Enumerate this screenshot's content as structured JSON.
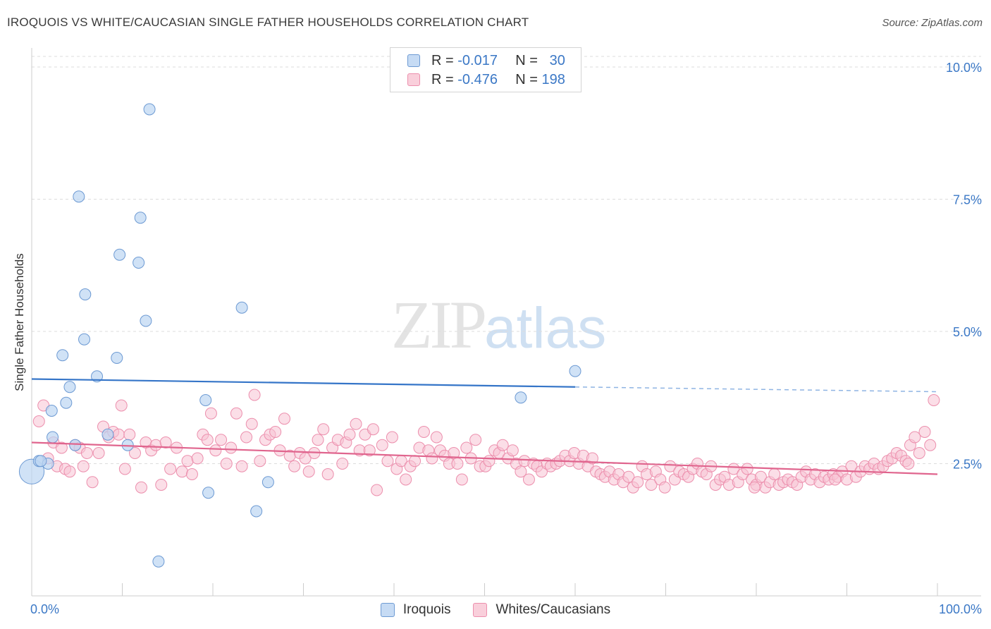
{
  "title": "IROQUOIS VS WHITE/CAUCASIAN SINGLE FATHER HOUSEHOLDS CORRELATION CHART",
  "source": "Source: ZipAtlas.com",
  "watermark": {
    "zip": "ZIP",
    "atlas": "atlas"
  },
  "legend_top": [
    {
      "r_label": "R =",
      "r_value": "-0.017",
      "n_label": "N =",
      "n_value": "30",
      "color": "#a8c8ee"
    },
    {
      "r_label": "R =",
      "r_value": "-0.476",
      "n_label": "N =",
      "n_value": "198",
      "color": "#f5b8cb"
    }
  ],
  "legend_bottom": [
    {
      "label": "Iroquois",
      "color": "#a8c8ee"
    },
    {
      "label": "Whites/Caucasians",
      "color": "#f5b8cb"
    }
  ],
  "chart_data": {
    "type": "scatter",
    "title": "IROQUOIS VS WHITE/CAUCASIAN SINGLE FATHER HOUSEHOLDS CORRELATION CHART",
    "xlabel": "",
    "ylabel": "Single Father Households",
    "xlim": [
      0,
      100
    ],
    "ylim": [
      0,
      10.2
    ],
    "x_tick_labels": [
      "0.0%",
      "100.0%"
    ],
    "y_ticks": [
      2.5,
      5.0,
      7.5,
      10.0
    ],
    "y_tick_labels": [
      "2.5%",
      "5.0%",
      "7.5%",
      "10.0%"
    ],
    "grid": "horizontal dashed",
    "colors": {
      "iroquois": "#3575c8",
      "iroquois_fill": "#bcd5f2",
      "whites": "#e0658e",
      "whites_fill": "#f7c3d3",
      "tick_label": "#3b78c6"
    },
    "series": [
      {
        "name": "Iroquois",
        "trend": {
          "x0": 0,
          "y0": 4.1,
          "x1": 60,
          "y1": 3.95,
          "dashed_to_x": 100,
          "dashed_to_y": 3.86
        },
        "points": [
          [
            0.0,
            2.35,
            2.2
          ],
          [
            0.8,
            2.55,
            1
          ],
          [
            1.8,
            2.5,
            1
          ],
          [
            2.3,
            3.0,
            1
          ],
          [
            2.2,
            3.5,
            1
          ],
          [
            3.4,
            4.55,
            1
          ],
          [
            3.8,
            3.65,
            1
          ],
          [
            4.2,
            3.95,
            1
          ],
          [
            4.8,
            2.85,
            1
          ],
          [
            5.2,
            7.55,
            1
          ],
          [
            5.9,
            5.7,
            1
          ],
          [
            5.8,
            4.85,
            1
          ],
          [
            7.2,
            4.15,
            1
          ],
          [
            8.4,
            3.05,
            1
          ],
          [
            9.4,
            4.5,
            1
          ],
          [
            9.7,
            6.45,
            1
          ],
          [
            10.6,
            2.85,
            1
          ],
          [
            11.8,
            6.3,
            1
          ],
          [
            12.0,
            7.15,
            1
          ],
          [
            12.6,
            5.2,
            1
          ],
          [
            13.0,
            9.2,
            1
          ],
          [
            14.0,
            0.65,
            1
          ],
          [
            19.2,
            3.7,
            1
          ],
          [
            19.5,
            1.95,
            1
          ],
          [
            23.2,
            5.45,
            1
          ],
          [
            24.8,
            1.6,
            1
          ],
          [
            26.1,
            2.15,
            1
          ],
          [
            60.0,
            4.25,
            1
          ],
          [
            54.0,
            3.75,
            1
          ],
          [
            1.0,
            2.55,
            1
          ]
        ]
      },
      {
        "name": "Whites/Caucasians",
        "trend": {
          "x0": 0,
          "y0": 2.9,
          "x1": 100,
          "y1": 2.3
        },
        "points": [
          [
            0.8,
            3.3
          ],
          [
            1.3,
            3.6
          ],
          [
            1.8,
            2.6
          ],
          [
            2.4,
            2.9
          ],
          [
            2.8,
            2.45
          ],
          [
            3.3,
            2.8
          ],
          [
            3.7,
            2.4
          ],
          [
            4.2,
            2.35
          ],
          [
            4.8,
            2.85
          ],
          [
            5.3,
            2.8
          ],
          [
            5.7,
            2.45
          ],
          [
            6.1,
            2.7
          ],
          [
            6.7,
            2.15
          ],
          [
            7.4,
            2.7
          ],
          [
            7.9,
            3.2
          ],
          [
            8.5,
            3.0
          ],
          [
            9.0,
            3.1
          ],
          [
            9.6,
            3.05
          ],
          [
            9.9,
            3.6
          ],
          [
            10.3,
            2.4
          ],
          [
            10.8,
            3.05
          ],
          [
            11.4,
            2.7
          ],
          [
            12.1,
            2.05
          ],
          [
            12.6,
            2.9
          ],
          [
            13.2,
            2.75
          ],
          [
            13.7,
            2.85
          ],
          [
            14.3,
            2.1
          ],
          [
            14.8,
            2.9
          ],
          [
            15.3,
            2.4
          ],
          [
            16.0,
            2.8
          ],
          [
            16.6,
            2.35
          ],
          [
            17.2,
            2.55
          ],
          [
            17.7,
            2.3
          ],
          [
            18.3,
            2.6
          ],
          [
            18.9,
            3.05
          ],
          [
            19.4,
            2.95
          ],
          [
            19.8,
            3.45
          ],
          [
            20.3,
            2.75
          ],
          [
            20.9,
            2.95
          ],
          [
            21.5,
            2.5
          ],
          [
            22.0,
            2.8
          ],
          [
            22.6,
            3.45
          ],
          [
            23.2,
            2.45
          ],
          [
            23.7,
            3.0
          ],
          [
            24.3,
            3.25
          ],
          [
            24.6,
            3.8
          ],
          [
            25.2,
            2.55
          ],
          [
            25.8,
            2.95
          ],
          [
            26.3,
            3.05
          ],
          [
            26.9,
            3.1
          ],
          [
            27.4,
            2.75
          ],
          [
            27.9,
            3.35
          ],
          [
            28.5,
            2.65
          ],
          [
            29.0,
            2.45
          ],
          [
            29.6,
            2.7
          ],
          [
            30.2,
            2.6
          ],
          [
            30.6,
            2.35
          ],
          [
            31.2,
            2.7
          ],
          [
            31.6,
            2.95
          ],
          [
            32.2,
            3.15
          ],
          [
            32.7,
            2.3
          ],
          [
            33.2,
            2.8
          ],
          [
            33.8,
            2.95
          ],
          [
            34.3,
            2.5
          ],
          [
            34.7,
            2.9
          ],
          [
            35.1,
            3.05
          ],
          [
            35.8,
            3.25
          ],
          [
            36.2,
            2.75
          ],
          [
            36.8,
            3.05
          ],
          [
            37.3,
            2.75
          ],
          [
            37.7,
            3.15
          ],
          [
            38.1,
            2.0
          ],
          [
            38.7,
            2.85
          ],
          [
            39.3,
            2.55
          ],
          [
            39.8,
            3.0
          ],
          [
            40.3,
            2.4
          ],
          [
            40.8,
            2.55
          ],
          [
            41.3,
            2.2
          ],
          [
            41.8,
            2.45
          ],
          [
            42.3,
            2.55
          ],
          [
            42.8,
            2.8
          ],
          [
            43.3,
            3.1
          ],
          [
            43.8,
            2.75
          ],
          [
            44.2,
            2.6
          ],
          [
            44.7,
            3.0
          ],
          [
            45.1,
            2.75
          ],
          [
            45.6,
            2.65
          ],
          [
            46.1,
            2.5
          ],
          [
            46.6,
            2.7
          ],
          [
            47.0,
            2.5
          ],
          [
            47.5,
            2.2
          ],
          [
            48.0,
            2.8
          ],
          [
            48.5,
            2.6
          ],
          [
            49.0,
            2.95
          ],
          [
            49.5,
            2.45
          ],
          [
            50.1,
            2.45
          ],
          [
            50.5,
            2.55
          ],
          [
            51.1,
            2.75
          ],
          [
            51.6,
            2.7
          ],
          [
            52.0,
            2.85
          ],
          [
            52.6,
            2.6
          ],
          [
            53.1,
            2.75
          ],
          [
            53.5,
            2.5
          ],
          [
            54.0,
            2.35
          ],
          [
            54.4,
            2.55
          ],
          [
            54.9,
            2.2
          ],
          [
            55.4,
            2.5
          ],
          [
            55.8,
            2.45
          ],
          [
            56.3,
            2.35
          ],
          [
            56.9,
            2.5
          ],
          [
            57.3,
            2.45
          ],
          [
            57.9,
            2.5
          ],
          [
            58.3,
            2.55
          ],
          [
            58.9,
            2.65
          ],
          [
            59.4,
            2.55
          ],
          [
            59.9,
            2.7
          ],
          [
            60.4,
            2.5
          ],
          [
            60.9,
            2.65
          ],
          [
            61.4,
            2.45
          ],
          [
            61.9,
            2.6
          ],
          [
            62.3,
            2.35
          ],
          [
            62.8,
            2.3
          ],
          [
            63.3,
            2.25
          ],
          [
            63.8,
            2.35
          ],
          [
            64.3,
            2.2
          ],
          [
            64.8,
            2.3
          ],
          [
            65.3,
            2.15
          ],
          [
            65.9,
            2.25
          ],
          [
            66.4,
            2.05
          ],
          [
            66.9,
            2.15
          ],
          [
            67.4,
            2.45
          ],
          [
            67.9,
            2.3
          ],
          [
            68.4,
            2.1
          ],
          [
            68.9,
            2.35
          ],
          [
            69.4,
            2.2
          ],
          [
            69.9,
            2.05
          ],
          [
            70.5,
            2.45
          ],
          [
            71.0,
            2.2
          ],
          [
            71.5,
            2.35
          ],
          [
            72.0,
            2.3
          ],
          [
            72.5,
            2.25
          ],
          [
            73.0,
            2.4
          ],
          [
            73.5,
            2.5
          ],
          [
            74.0,
            2.35
          ],
          [
            74.5,
            2.3
          ],
          [
            75.0,
            2.45
          ],
          [
            75.5,
            2.1
          ],
          [
            76.0,
            2.2
          ],
          [
            76.5,
            2.25
          ],
          [
            77.0,
            2.1
          ],
          [
            77.5,
            2.4
          ],
          [
            78.0,
            2.15
          ],
          [
            78.5,
            2.3
          ],
          [
            79.0,
            2.4
          ],
          [
            79.5,
            2.2
          ],
          [
            80.0,
            2.1
          ],
          [
            80.5,
            2.25
          ],
          [
            81.0,
            2.05
          ],
          [
            81.5,
            2.15
          ],
          [
            82.0,
            2.3
          ],
          [
            82.5,
            2.1
          ],
          [
            83.0,
            2.15
          ],
          [
            83.5,
            2.2
          ],
          [
            84.0,
            2.15
          ],
          [
            84.5,
            2.1
          ],
          [
            85.0,
            2.25
          ],
          [
            85.5,
            2.35
          ],
          [
            86.0,
            2.2
          ],
          [
            86.5,
            2.3
          ],
          [
            87.0,
            2.15
          ],
          [
            87.5,
            2.25
          ],
          [
            88.0,
            2.2
          ],
          [
            88.5,
            2.3
          ],
          [
            89.0,
            2.25
          ],
          [
            89.5,
            2.35
          ],
          [
            90.0,
            2.2
          ],
          [
            90.5,
            2.45
          ],
          [
            91.0,
            2.25
          ],
          [
            91.5,
            2.35
          ],
          [
            92.0,
            2.45
          ],
          [
            92.5,
            2.4
          ],
          [
            93.0,
            2.5
          ],
          [
            93.5,
            2.4
          ],
          [
            94.0,
            2.45
          ],
          [
            94.5,
            2.55
          ],
          [
            95.0,
            2.6
          ],
          [
            95.5,
            2.7
          ],
          [
            96.0,
            2.65
          ],
          [
            96.5,
            2.55
          ],
          [
            97.0,
            2.85
          ],
          [
            97.5,
            3.0
          ],
          [
            98.0,
            2.7
          ],
          [
            98.6,
            3.1
          ],
          [
            99.2,
            2.85
          ],
          [
            99.6,
            3.7
          ],
          [
            96.8,
            2.5
          ],
          [
            88.7,
            2.2
          ],
          [
            79.8,
            2.05
          ]
        ]
      }
    ]
  }
}
